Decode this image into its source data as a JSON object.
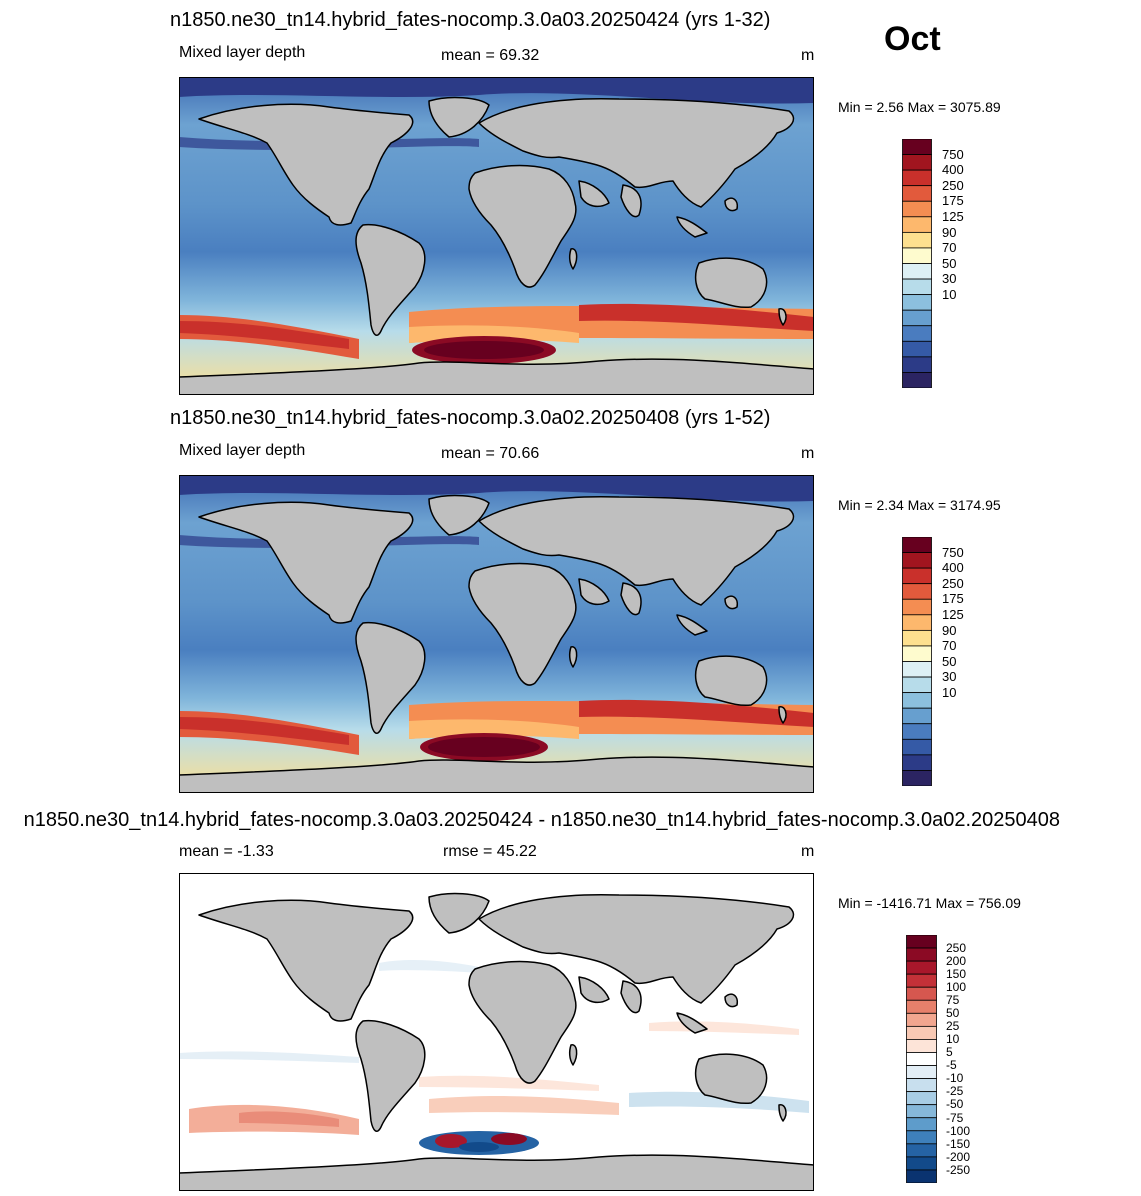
{
  "month": "Oct",
  "panels": [
    {
      "id": "a03",
      "title": "n1850.ne30_tn14.hybrid_fates-nocomp.3.0a03.20250424 (yrs 1-32)",
      "left_label": "Mixed layer depth",
      "center_label": "mean =  69.32",
      "units": "m",
      "minmax": "Min =   2.56 Max = 3075.89",
      "colorbar": {
        "labels": [
          "750",
          "400",
          "250",
          "175",
          "125",
          "90",
          "70",
          "50",
          "30",
          "10"
        ],
        "colors": [
          "#67001f",
          "#a1151f",
          "#c9302b",
          "#e25a3c",
          "#f48d52",
          "#fdb86d",
          "#fde08f",
          "#fefbce",
          "#ddf0f5",
          "#b7dcea",
          "#8cc0de",
          "#679fcf",
          "#4a7cbf",
          "#355aa6",
          "#2c3b87",
          "#2b2462"
        ]
      }
    },
    {
      "id": "a02",
      "title": "n1850.ne30_tn14.hybrid_fates-nocomp.3.0a02.20250408 (yrs 1-52)",
      "left_label": "Mixed layer depth",
      "center_label": "mean =  70.66",
      "units": "m",
      "minmax": "Min =   2.34 Max = 3174.95",
      "colorbar": {
        "labels": [
          "750",
          "400",
          "250",
          "175",
          "125",
          "90",
          "70",
          "50",
          "30",
          "10"
        ],
        "colors": [
          "#67001f",
          "#a1151f",
          "#c9302b",
          "#e25a3c",
          "#f48d52",
          "#fdb86d",
          "#fde08f",
          "#fefbce",
          "#ddf0f5",
          "#b7dcea",
          "#8cc0de",
          "#679fcf",
          "#4a7cbf",
          "#355aa6",
          "#2c3b87",
          "#2b2462"
        ]
      }
    },
    {
      "id": "diff",
      "title": "n1850.ne30_tn14.hybrid_fates-nocomp.3.0a03.20250424 - n1850.ne30_tn14.hybrid_fates-nocomp.3.0a02.20250408",
      "left_label": "mean =  -1.33",
      "center_label": "rmse =  45.22",
      "units": "m",
      "minmax": "Min = -1416.71 Max = 756.09",
      "colorbar": {
        "labels": [
          "250",
          "200",
          "150",
          "100",
          "75",
          "50",
          "25",
          "10",
          "5",
          "-5",
          "-10",
          "-25",
          "-50",
          "-75",
          "-100",
          "-150",
          "-200",
          "-250"
        ],
        "colors": [
          "#67001f",
          "#8b0a24",
          "#a8172b",
          "#c33138",
          "#d6574f",
          "#e7806b",
          "#f2a68f",
          "#f9c9b4",
          "#fde4d8",
          "#ffffff",
          "#e3eef6",
          "#c8dfee",
          "#a8cde5",
          "#86b8da",
          "#5e9ccb",
          "#3e80bb",
          "#2563a4",
          "#124a8a",
          "#0a3370"
        ]
      }
    }
  ]
}
